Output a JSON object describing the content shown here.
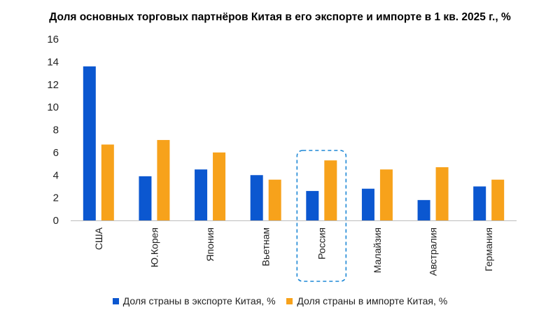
{
  "title": "Доля основных торговых партнёров Китая в его экспорте и импорте в 1 кв. 2025 г., %",
  "colors": {
    "export": "#0b57d0",
    "import": "#f7a21b",
    "highlight": "#1e88d6"
  },
  "chart_data": {
    "type": "bar",
    "title": "Доля основных торговых партнёров Китая в его экспорте и импорте в 1 кв. 2025 г., %",
    "categories": [
      "США",
      "Ю.Корея",
      "Япония",
      "Вьетнам",
      "Россия",
      "Малайзия",
      "Австралия",
      "Германия"
    ],
    "series": [
      {
        "name": "Доля страны в экспорте Китая, %",
        "values": [
          13.6,
          3.9,
          4.5,
          4.0,
          2.6,
          2.8,
          1.8,
          3.0
        ]
      },
      {
        "name": "Доля страны в импорте Китая, %",
        "values": [
          6.7,
          7.1,
          6.0,
          3.6,
          5.3,
          4.5,
          4.7,
          3.6
        ]
      }
    ],
    "ylim": [
      0,
      16
    ],
    "yticks": [
      "0",
      "2",
      "4",
      "6",
      "8",
      "10",
      "12",
      "14",
      "16"
    ],
    "highlighted_category": "Россия",
    "grid": false,
    "legend": "bottom"
  }
}
